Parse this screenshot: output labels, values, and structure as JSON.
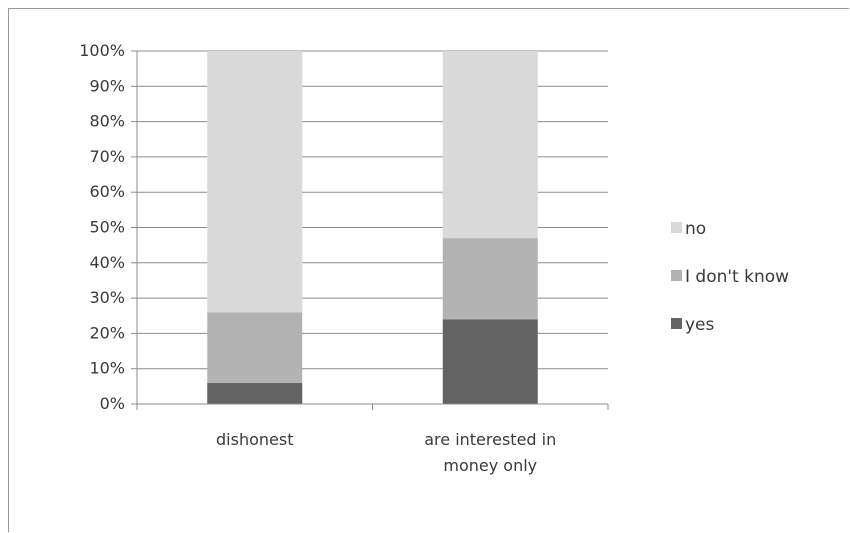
{
  "chart_data": {
    "type": "bar",
    "stacked": true,
    "percent_scale": true,
    "categories": [
      [
        "dishonest"
      ],
      [
        "are interested in",
        "money only"
      ]
    ],
    "series": [
      {
        "name": "yes",
        "values": [
          6,
          24
        ],
        "color": "#636363"
      },
      {
        "name": "I don't know",
        "values": [
          20,
          23
        ],
        "color": "#b3b3b3"
      },
      {
        "name": "no",
        "values": [
          74,
          53
        ],
        "color": "#d9d9d9"
      }
    ],
    "yticks": [
      "0%",
      "10%",
      "20%",
      "30%",
      "40%",
      "50%",
      "60%",
      "70%",
      "80%",
      "90%",
      "100%"
    ],
    "ylim": [
      0,
      100
    ],
    "grid": true,
    "legend_placement": "right",
    "legend_order": [
      "no",
      "I don't know",
      "yes"
    ],
    "title": "",
    "xlabel": "",
    "ylabel": ""
  }
}
